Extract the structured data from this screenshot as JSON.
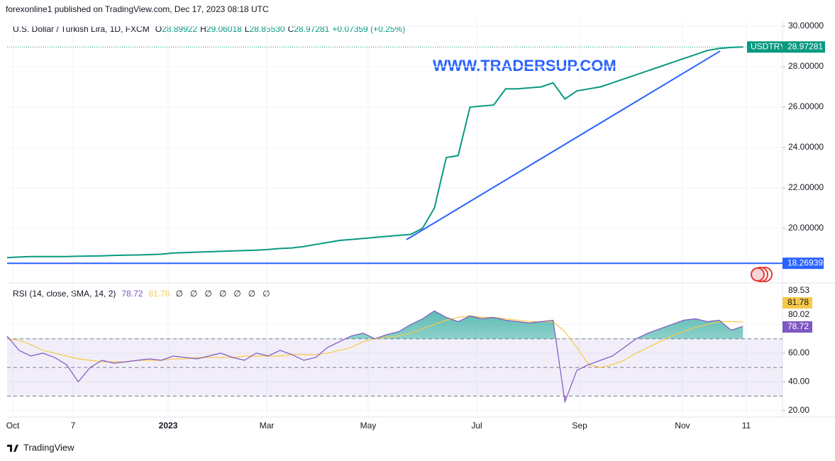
{
  "header": {
    "published": "forexonline1 published on TradingView.com, Dec 17, 2023 08:18 UTC",
    "footer": "TradingView",
    "watermark": "WWW.TRADERSUP.COM"
  },
  "chart_data": [
    {
      "type": "line",
      "title": "U.S. Dollar / Turkish Lira, 1D, FXCM",
      "ohlc": [
        {
          "label": "O",
          "value": "28.89922"
        },
        {
          "label": "H",
          "value": "29.06018"
        },
        {
          "label": "L",
          "value": "28.85530"
        },
        {
          "label": "C",
          "value": "28.97281"
        }
      ],
      "change": "+0.07359 (+0.25%)",
      "x": [
        0,
        1,
        2,
        3,
        4,
        5,
        6,
        7,
        8,
        9,
        10,
        11,
        12,
        13,
        14,
        15,
        16,
        17,
        18,
        19,
        20,
        21,
        22,
        23,
        24,
        25,
        26,
        27,
        28,
        29,
        30,
        31,
        32,
        33,
        34,
        35,
        36,
        37,
        38,
        39,
        40,
        41,
        42,
        43,
        44,
        45,
        46,
        47,
        48,
        49,
        50,
        51,
        52,
        53,
        54,
        55,
        56,
        57,
        58,
        59,
        60,
        61,
        62
      ],
      "series": [
        {
          "name": "USDTRY",
          "color": "#089981",
          "values": [
            18.55,
            18.58,
            18.6,
            18.6,
            18.6,
            18.6,
            18.62,
            18.63,
            18.64,
            18.66,
            18.67,
            18.68,
            18.7,
            18.72,
            18.78,
            18.8,
            18.82,
            18.84,
            18.86,
            18.88,
            18.9,
            18.92,
            18.95,
            19.0,
            19.03,
            19.1,
            19.2,
            19.3,
            19.4,
            19.45,
            19.5,
            19.55,
            19.6,
            19.65,
            19.7,
            20.0,
            21.0,
            23.5,
            23.6,
            26.0,
            26.05,
            26.1,
            26.9,
            26.9,
            26.95,
            27.0,
            27.2,
            26.4,
            26.8,
            26.9,
            27.0,
            27.2,
            27.4,
            27.6,
            27.8,
            28.0,
            28.2,
            28.4,
            28.6,
            28.8,
            28.9,
            28.95,
            28.97281
          ]
        }
      ],
      "hline": {
        "value": 18.26939,
        "color": "#2962ff"
      },
      "trendline": {
        "x": [
          33.65,
          60.07
        ],
        "y": [
          19.44,
          28.77
        ],
        "color": "#2962ff"
      },
      "xlim": [
        0,
        65.33
      ],
      "ylim": [
        17.33,
        30.316
      ],
      "yticks": [
        {
          "value": 20,
          "label": "20.00000"
        },
        {
          "value": 22,
          "label": "22.00000"
        },
        {
          "value": 24,
          "label": "24.00000"
        },
        {
          "value": 26,
          "label": "26.00000"
        },
        {
          "value": 28,
          "label": "28.00000"
        },
        {
          "value": 30,
          "label": "30.00000"
        }
      ],
      "xticks": [
        {
          "value": 0.48,
          "label": "Oct"
        },
        {
          "value": 5.56,
          "label": "7"
        },
        {
          "value": 13.57,
          "label": "2023"
        },
        {
          "value": 21.88,
          "label": "Mar"
        },
        {
          "value": 30.42,
          "label": "May"
        },
        {
          "value": 39.57,
          "label": "Jul"
        },
        {
          "value": 48.24,
          "label": "Sep"
        },
        {
          "value": 56.9,
          "label": "Nov"
        },
        {
          "value": 62.28,
          "label": "11"
        }
      ]
    },
    {
      "type": "line",
      "title": "RSI (14, close, SMA, 14, 2)",
      "hidden_values": [
        "∅",
        "∅",
        "∅",
        "∅",
        "∅",
        "∅",
        "∅"
      ],
      "x": [
        0,
        1,
        2,
        3,
        4,
        5,
        6,
        7,
        8,
        9,
        10,
        11,
        12,
        13,
        14,
        15,
        16,
        17,
        18,
        19,
        20,
        21,
        22,
        23,
        24,
        25,
        26,
        27,
        28,
        29,
        30,
        31,
        32,
        33,
        34,
        35,
        36,
        37,
        38,
        39,
        40,
        41,
        42,
        43,
        44,
        45,
        46,
        47,
        48,
        49,
        50,
        51,
        52,
        53,
        54,
        55,
        56,
        57,
        58,
        59,
        60,
        61,
        62
      ],
      "series": [
        {
          "color": "#7e57c2",
          "values": [
            72,
            62,
            58,
            60,
            57,
            52,
            40,
            50,
            55,
            53,
            54,
            55,
            56,
            55,
            58,
            57,
            56,
            58,
            60,
            57,
            55,
            60,
            58,
            62,
            59,
            55,
            57,
            64,
            68,
            72,
            74,
            70,
            73,
            75,
            80,
            84,
            89.53,
            85,
            82,
            86,
            84,
            85,
            83,
            82,
            81,
            82,
            83,
            26,
            48,
            52,
            55,
            58,
            64,
            70,
            74,
            77,
            80,
            83,
            84,
            82,
            83,
            76,
            78.72
          ]
        },
        {
          "color": "#f7c948",
          "values": [
            70,
            69,
            66,
            62,
            60,
            58,
            56,
            55,
            54,
            54,
            54,
            55,
            55,
            55,
            56,
            56,
            57,
            57,
            57,
            57,
            58,
            58,
            58,
            58,
            59,
            59,
            59,
            60,
            62,
            64,
            68,
            70,
            71,
            72,
            74,
            77,
            80,
            83,
            85,
            86,
            85,
            85,
            84,
            83,
            82,
            82,
            82,
            75,
            64,
            52,
            50,
            52,
            55,
            60,
            64,
            68,
            72,
            75,
            78,
            80,
            82,
            82,
            81.78
          ]
        }
      ],
      "top_label": 89.53,
      "levels": [
        70,
        50,
        30
      ],
      "xlim": [
        0,
        65.33
      ],
      "ylim": [
        15.4,
        108.5
      ],
      "yticks": [
        {
          "value": 20,
          "label": "20.00"
        },
        {
          "value": 40,
          "label": "40.00"
        },
        {
          "value": 60,
          "label": "60.00"
        },
        {
          "value": 80.02,
          "label": "80.02"
        }
      ]
    }
  ]
}
